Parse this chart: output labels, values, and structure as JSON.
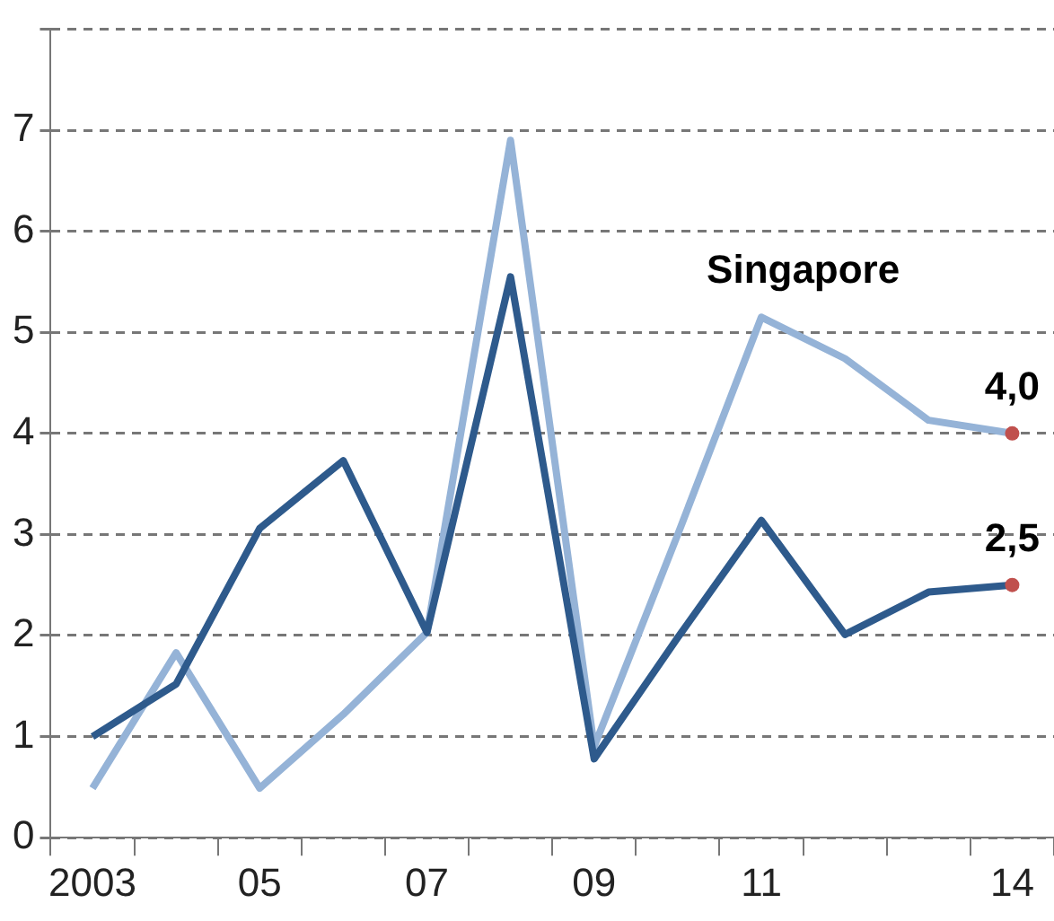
{
  "chart_data": {
    "type": "line",
    "categories": [
      "2003",
      null,
      "05",
      null,
      "07",
      null,
      "09",
      null,
      "11",
      null,
      null,
      "14"
    ],
    "series": [
      {
        "color": "#2e5a8c",
        "values": [
          1.0,
          1.52,
          3.06,
          3.73,
          2.03,
          5.55,
          0.78,
          1.98,
          3.14,
          2.01,
          2.43,
          2.5
        ],
        "value_labels": [
          null,
          null,
          null,
          null,
          null,
          null,
          null,
          null,
          null,
          null,
          null,
          "2,5"
        ]
      },
      {
        "name": "Singapore",
        "color": "#95b3d7",
        "values": [
          0.49,
          1.83,
          0.49,
          1.22,
          2.03,
          6.9,
          0.9,
          3.0,
          5.15,
          4.74,
          4.13,
          4.0
        ],
        "value_labels": [
          null,
          null,
          null,
          null,
          null,
          null,
          null,
          null,
          null,
          null,
          null,
          "4,0"
        ]
      }
    ],
    "ylim": [
      0,
      8
    ],
    "yticks": [
      0,
      1,
      2,
      3,
      4,
      5,
      6,
      7,
      {
        "value": 8,
        "label": null
      }
    ],
    "grid": "y",
    "legend": false,
    "marker": "none",
    "line_style": "solid"
  }
}
